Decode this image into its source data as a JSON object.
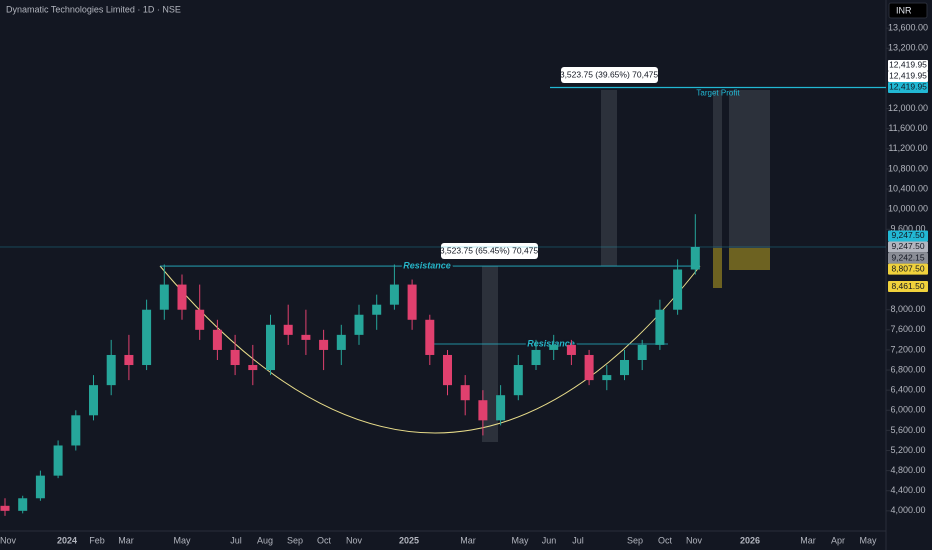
{
  "header": {
    "title": "Dynamatic Technologies Limited · 1D · NSE",
    "currency": "INR"
  },
  "chart_data": {
    "type": "candlestick",
    "x_labels": [
      "Nov",
      "2024",
      "Feb",
      "Mar",
      "May",
      "Jul",
      "Aug",
      "Sep",
      "Oct",
      "Nov",
      "2025",
      "Mar",
      "May",
      "Jun",
      "Jul",
      "Sep",
      "Oct",
      "Nov",
      "2026",
      "Mar",
      "Apr",
      "May"
    ],
    "ylim": [
      3420,
      14160
    ],
    "yticks": [
      {
        "value": 4000,
        "label": "4,000.00"
      },
      {
        "value": 4400,
        "label": "4,400.00"
      },
      {
        "value": 4800,
        "label": "4,800.00"
      },
      {
        "value": 5200,
        "label": "5,200.00"
      },
      {
        "value": 5600,
        "label": "5,600.00"
      },
      {
        "value": 6000,
        "label": "6,000.00"
      },
      {
        "value": 6400,
        "label": "6,400.00"
      },
      {
        "value": 6800,
        "label": "6,800.00"
      },
      {
        "value": 7200,
        "label": "7,200.00"
      },
      {
        "value": 7600,
        "label": "7,600.00"
      },
      {
        "value": 8000,
        "label": "8,000.00"
      },
      {
        "value": 9600,
        "label": "9,600.00"
      },
      {
        "value": 10000,
        "label": "10,000.00"
      },
      {
        "value": 10400,
        "label": "10,400.00"
      },
      {
        "value": 10800,
        "label": "10,800.00"
      },
      {
        "value": 11200,
        "label": "11,200.00"
      },
      {
        "value": 11600,
        "label": "11,600.00"
      },
      {
        "value": 12000,
        "label": "12,000.00"
      },
      {
        "value": 13200,
        "label": "13,200.00"
      },
      {
        "value": 13600,
        "label": "13,600.00"
      }
    ],
    "up_color": "#26a69a",
    "down_color": "#e0406e",
    "series": [
      {
        "values": [
          [
            4100,
            4250,
            3900,
            4000
          ],
          [
            4000,
            4300,
            3950,
            4250
          ],
          [
            4250,
            4800,
            4200,
            4700
          ],
          [
            4700,
            5400,
            4650,
            5300
          ],
          [
            5300,
            6000,
            5200,
            5900
          ],
          [
            5900,
            6700,
            5800,
            6500
          ],
          [
            6500,
            7400,
            6300,
            7100
          ],
          [
            7100,
            7500,
            6600,
            6900
          ],
          [
            6900,
            8200,
            6800,
            8000
          ],
          [
            8000,
            8900,
            7800,
            8500
          ],
          [
            8500,
            8700,
            7800,
            8000
          ],
          [
            8000,
            8500,
            7400,
            7600
          ],
          [
            7600,
            7800,
            7000,
            7200
          ],
          [
            7200,
            7500,
            6700,
            6900
          ],
          [
            6900,
            7300,
            6500,
            6800
          ],
          [
            6800,
            7900,
            6700,
            7700
          ],
          [
            7700,
            8100,
            7300,
            7500
          ],
          [
            7500,
            8000,
            7100,
            7400
          ],
          [
            7400,
            7600,
            6800,
            7200
          ],
          [
            7200,
            7700,
            6900,
            7500
          ],
          [
            7500,
            8100,
            7300,
            7900
          ],
          [
            7900,
            8300,
            7600,
            8100
          ],
          [
            8100,
            8900,
            8000,
            8500
          ],
          [
            8500,
            8600,
            7600,
            7800
          ],
          [
            7800,
            7900,
            6900,
            7100
          ],
          [
            7100,
            7200,
            6300,
            6500
          ],
          [
            6500,
            6700,
            5900,
            6200
          ],
          [
            6200,
            6400,
            5500,
            5800
          ],
          [
            5800,
            6500,
            5700,
            6300
          ],
          [
            6300,
            7100,
            6200,
            6900
          ],
          [
            6900,
            7400,
            6800,
            7200
          ],
          [
            7200,
            7500,
            7000,
            7300
          ],
          [
            7300,
            7400,
            6900,
            7100
          ],
          [
            7100,
            7200,
            6500,
            6600
          ],
          [
            6600,
            6900,
            6400,
            6700
          ],
          [
            6700,
            7200,
            6600,
            7000
          ],
          [
            7000,
            7400,
            6800,
            7300
          ],
          [
            7300,
            8200,
            7200,
            8000
          ],
          [
            8000,
            9000,
            7900,
            8800
          ],
          [
            8800,
            9900,
            8700,
            9247.5
          ]
        ]
      }
    ],
    "levels": [
      {
        "name": "Resistance",
        "value": 8868,
        "color": "#26b5c8"
      },
      {
        "name": "Resistance",
        "value": 7318,
        "color": "#26b5c8"
      },
      {
        "name": "Target Profit",
        "value": 12419.95,
        "color": "#22b8d4"
      }
    ],
    "measures": [
      "3,523.75 (39.65%) 70,475",
      "3,523.75 (65.45%) 70,475"
    ],
    "price_tags": [
      {
        "value": 12419.95,
        "label": "12,419.95",
        "color": "#ffffff"
      },
      {
        "value": 12419.95,
        "label": "12,419.95",
        "color": "#ffffff"
      },
      {
        "value": 12419.95,
        "label": "12,419.95",
        "color": "#22b8d4"
      },
      {
        "value": 9247.5,
        "label": "9,247.50",
        "color": "#22b8d4"
      },
      {
        "value": 9247.5,
        "label": "9,247.50",
        "color": "#b2b5be"
      },
      {
        "value": 9242.15,
        "label": "9,242.15",
        "color": "#8a8d96"
      },
      {
        "value": 8807.5,
        "label": "8,807.50",
        "color": "#f0d23c"
      },
      {
        "value": 8461.5,
        "label": "8,461.50",
        "color": "#f0d23c"
      }
    ]
  }
}
